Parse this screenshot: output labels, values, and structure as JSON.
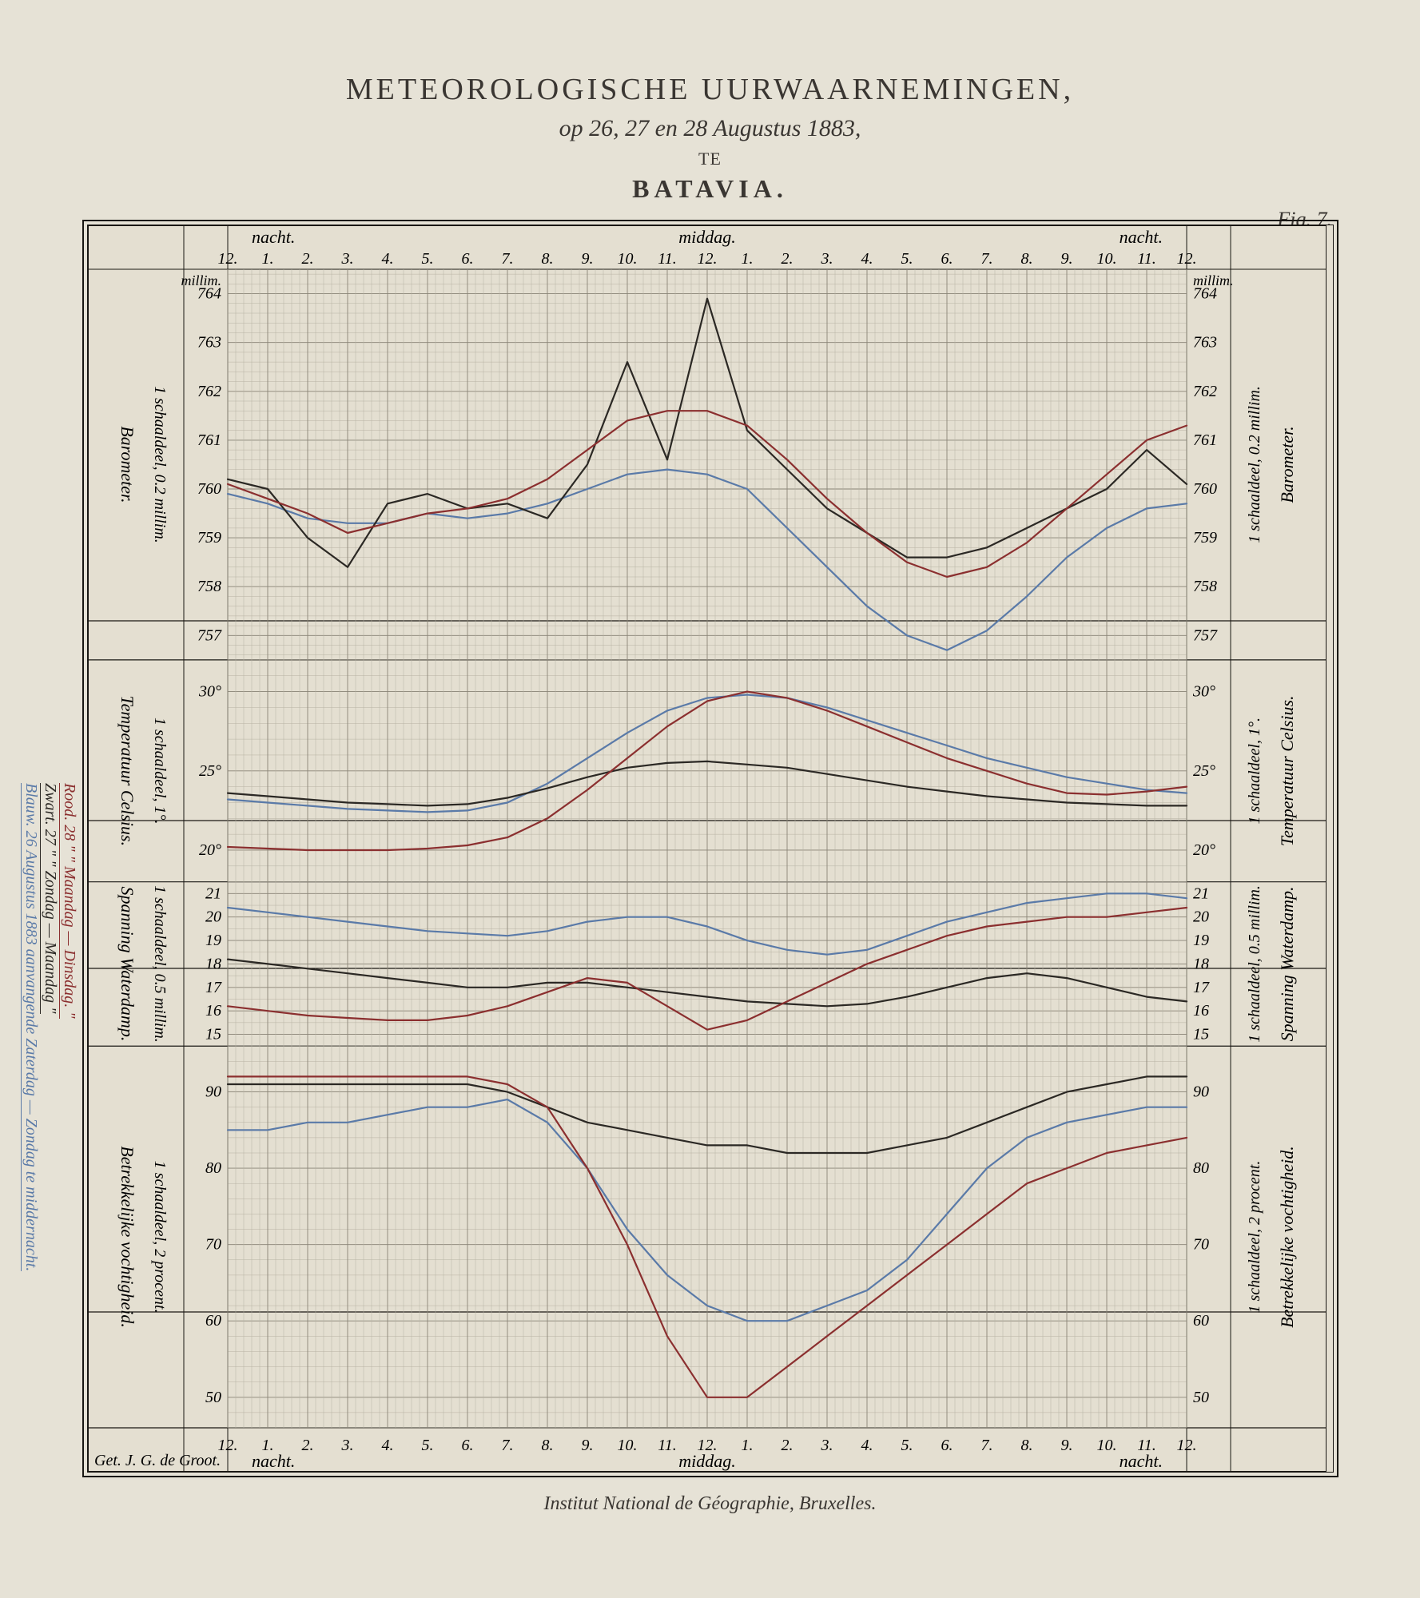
{
  "title": {
    "line1": "METEOROLOGISCHE UURWAARNEMINGEN,",
    "line2": "op 26, 27 en 28 Augustus 1883,",
    "line3": "TE",
    "line4": "BATAVIA."
  },
  "fig_label": "Fig. 7.",
  "footer": "Institut National de Géographie, Bruxelles.",
  "credit": "Get. J. G. de Groot.",
  "page_bg": "#e6e2d6",
  "frame_color": "#1a1814",
  "grid_color_fine": "#b7b2a3",
  "grid_color_major": "#8a8477",
  "colors": {
    "blue": "#5a7aa8",
    "black": "#2b2824",
    "red": "#8b2f2f"
  },
  "legend": {
    "blue": "Blauw.   26 Augustus 1883   aanvangende   Zaterdag — Zondag te middernacht.",
    "black": "Zwart.   27        \"                 \"                 Zondag — Maandag     \"",
    "red": "Rood.    28        \"                 \"                 Maandag — Dinsdag.    \""
  },
  "x": {
    "label_night_left": "nacht.",
    "label_midday": "middag.",
    "label_night_right": "nacht.",
    "hours": [
      12,
      1,
      2,
      3,
      4,
      5,
      6,
      7,
      8,
      9,
      10,
      11,
      12,
      1,
      2,
      3,
      4,
      5,
      6,
      7,
      8,
      9,
      10,
      11,
      12
    ]
  },
  "panels": {
    "barometer": {
      "title_left": "Barometer.",
      "subtitle_left": "1 schaaldeel, 0.2 millim.",
      "title_right": "Barometer.",
      "subtitle_right": "1 schaaldeel, 0.2 millim.",
      "unit": "millim.",
      "ylim": [
        756.5,
        764.5
      ],
      "yticks": [
        757,
        758,
        759,
        760,
        761,
        762,
        763,
        764
      ],
      "minor_step": 0.2,
      "series": {
        "blue": [
          759.9,
          759.7,
          759.4,
          759.3,
          759.3,
          759.5,
          759.4,
          759.5,
          759.7,
          760.0,
          760.3,
          760.4,
          760.3,
          760.0,
          759.2,
          758.4,
          757.6,
          757.0,
          756.7,
          757.1,
          757.8,
          758.6,
          759.2,
          759.6,
          759.7
        ],
        "black": [
          760.2,
          760.0,
          759.0,
          758.4,
          759.7,
          759.9,
          759.6,
          759.7,
          759.4,
          760.5,
          762.6,
          760.6,
          763.9,
          761.2,
          760.4,
          759.6,
          759.1,
          758.6,
          758.6,
          758.8,
          759.2,
          759.6,
          760.0,
          760.8,
          760.1
        ],
        "red": [
          760.1,
          759.8,
          759.5,
          759.1,
          759.3,
          759.5,
          759.6,
          759.8,
          760.2,
          760.8,
          761.4,
          761.6,
          761.6,
          761.3,
          760.6,
          759.8,
          759.1,
          758.5,
          758.2,
          758.4,
          758.9,
          759.6,
          760.3,
          761.0,
          761.3
        ]
      }
    },
    "temperature": {
      "title_left": "Temperatuur Celsius.",
      "subtitle_left": "1 schaaldeel, 1°.",
      "title_right": "Temperatuur Celsius.",
      "subtitle_right": "1 schaaldeel, 1°.",
      "ylim": [
        18,
        32
      ],
      "yticks": [
        20,
        25,
        30
      ],
      "minor_step": 1,
      "series": {
        "blue": [
          23.2,
          23.0,
          22.8,
          22.6,
          22.5,
          22.4,
          22.5,
          23.0,
          24.2,
          25.8,
          27.4,
          28.8,
          29.6,
          29.8,
          29.6,
          29.0,
          28.2,
          27.4,
          26.6,
          25.8,
          25.2,
          24.6,
          24.2,
          23.8,
          23.6
        ],
        "black": [
          23.6,
          23.4,
          23.2,
          23.0,
          22.9,
          22.8,
          22.9,
          23.3,
          23.9,
          24.6,
          25.2,
          25.5,
          25.6,
          25.4,
          25.2,
          24.8,
          24.4,
          24.0,
          23.7,
          23.4,
          23.2,
          23.0,
          22.9,
          22.8,
          22.8
        ],
        "red": [
          20.2,
          20.1,
          20.0,
          20.0,
          20.0,
          20.1,
          20.3,
          20.8,
          22.0,
          23.8,
          25.8,
          27.8,
          29.4,
          30.0,
          29.6,
          28.8,
          27.8,
          26.8,
          25.8,
          25.0,
          24.2,
          23.6,
          23.5,
          23.7,
          24.0
        ]
      }
    },
    "vapor": {
      "title_left": "Spanning Waterdamp.",
      "subtitle_left": "1 schaaldeel, 0.5 millim.",
      "title_right": "Spanning Waterdamp.",
      "subtitle_right": "1 schaaldeel, 0.5 millim.",
      "ylim": [
        14.5,
        21.5
      ],
      "yticks": [
        15,
        16,
        17,
        18,
        19,
        20,
        21
      ],
      "minor_step": 0.5,
      "series": {
        "blue": [
          20.4,
          20.2,
          20.0,
          19.8,
          19.6,
          19.4,
          19.3,
          19.2,
          19.4,
          19.8,
          20.0,
          20.0,
          19.6,
          19.0,
          18.6,
          18.4,
          18.6,
          19.2,
          19.8,
          20.2,
          20.6,
          20.8,
          21.0,
          21.0,
          20.8
        ],
        "black": [
          18.2,
          18.0,
          17.8,
          17.6,
          17.4,
          17.2,
          17.0,
          17.0,
          17.2,
          17.2,
          17.0,
          16.8,
          16.6,
          16.4,
          16.3,
          16.2,
          16.3,
          16.6,
          17.0,
          17.4,
          17.6,
          17.4,
          17.0,
          16.6,
          16.4
        ],
        "red": [
          16.2,
          16.0,
          15.8,
          15.7,
          15.6,
          15.6,
          15.8,
          16.2,
          16.8,
          17.4,
          17.2,
          16.2,
          15.2,
          15.6,
          16.4,
          17.2,
          18.0,
          18.6,
          19.2,
          19.6,
          19.8,
          20.0,
          20.0,
          20.2,
          20.4
        ]
      }
    },
    "humidity": {
      "title_left": "Betrekkelijke vochtigheid.",
      "subtitle_left": "1 schaaldeel, 2 procent.",
      "title_right": "Betrekkelijke vochtigheid.",
      "subtitle_right": "1 schaaldeel, 2 procent.",
      "ylim": [
        46,
        96
      ],
      "yticks": [
        50,
        60,
        70,
        80,
        90
      ],
      "minor_step": 2,
      "series": {
        "blue": [
          85,
          85,
          86,
          86,
          87,
          88,
          88,
          89,
          86,
          80,
          72,
          66,
          62,
          60,
          60,
          62,
          64,
          68,
          74,
          80,
          84,
          86,
          87,
          88,
          88
        ],
        "black": [
          91,
          91,
          91,
          91,
          91,
          91,
          91,
          90,
          88,
          86,
          85,
          84,
          83,
          83,
          82,
          82,
          82,
          83,
          84,
          86,
          88,
          90,
          91,
          92,
          92
        ],
        "red": [
          92,
          92,
          92,
          92,
          92,
          92,
          92,
          91,
          88,
          80,
          70,
          58,
          50,
          50,
          54,
          58,
          62,
          66,
          70,
          74,
          78,
          80,
          82,
          83,
          84
        ]
      }
    }
  }
}
